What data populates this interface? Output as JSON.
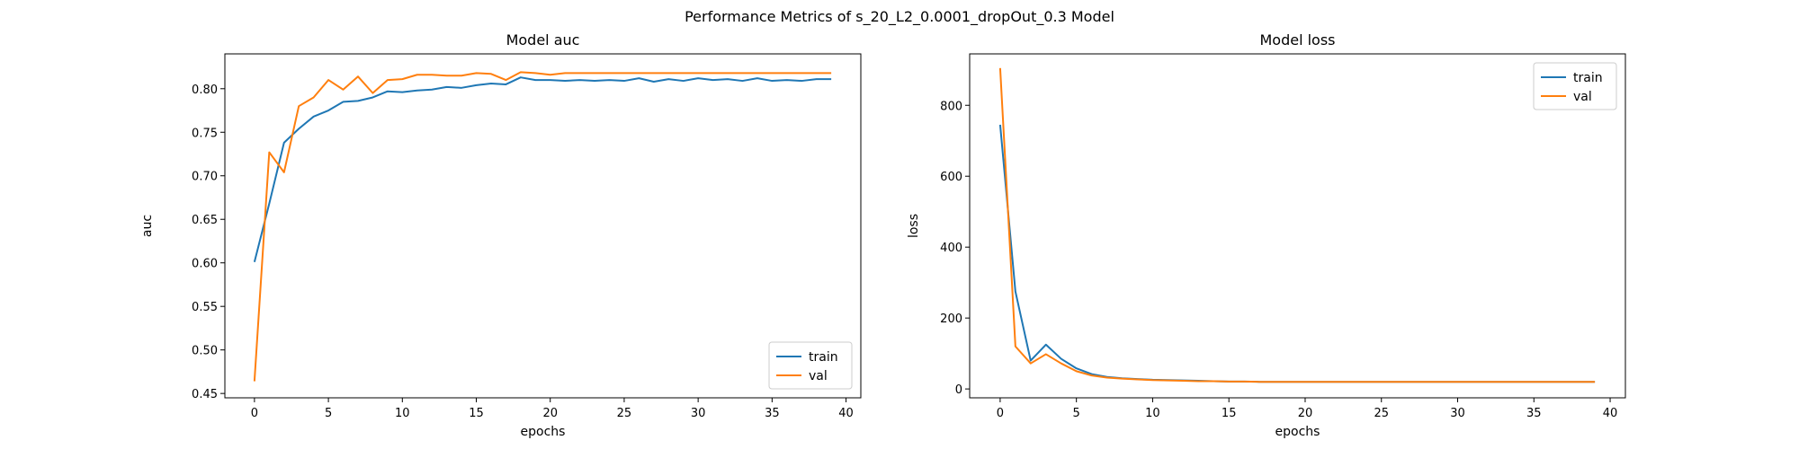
{
  "figure": {
    "suptitle": "Performance Metrics of s_20_L2_0.0001_dropOut_0.3 Model",
    "colors": {
      "train": "#1f77b4",
      "val": "#ff7f0e"
    }
  },
  "chart_data": [
    {
      "type": "line",
      "title": "Model auc",
      "xlabel": "epochs",
      "ylabel": "auc",
      "xlim": [
        -2,
        41
      ],
      "ylim": [
        0.445,
        0.84
      ],
      "xticks": [
        0,
        5,
        10,
        15,
        20,
        25,
        30,
        35,
        40
      ],
      "xtick_labels": [
        "0",
        "5",
        "10",
        "15",
        "20",
        "25",
        "30",
        "35",
        "40"
      ],
      "yticks": [
        0.45,
        0.5,
        0.55,
        0.6,
        0.65,
        0.7,
        0.75,
        0.8
      ],
      "ytick_labels": [
        "0.45",
        "0.50",
        "0.55",
        "0.60",
        "0.65",
        "0.70",
        "0.75",
        "0.80"
      ],
      "legend_position": "bottom-right",
      "grid": false,
      "x": [
        0,
        1,
        2,
        3,
        4,
        5,
        6,
        7,
        8,
        9,
        10,
        11,
        12,
        13,
        14,
        15,
        16,
        17,
        18,
        19,
        20,
        21,
        22,
        23,
        24,
        25,
        26,
        27,
        28,
        29,
        30,
        31,
        32,
        33,
        34,
        35,
        36,
        37,
        38,
        39
      ],
      "series": [
        {
          "name": "train",
          "values": [
            0.601,
            0.668,
            0.738,
            0.754,
            0.768,
            0.775,
            0.785,
            0.786,
            0.79,
            0.797,
            0.796,
            0.798,
            0.799,
            0.802,
            0.801,
            0.804,
            0.806,
            0.805,
            0.813,
            0.81,
            0.81,
            0.809,
            0.81,
            0.809,
            0.81,
            0.809,
            0.812,
            0.808,
            0.811,
            0.809,
            0.812,
            0.81,
            0.811,
            0.809,
            0.812,
            0.809,
            0.81,
            0.809,
            0.811,
            0.811
          ]
        },
        {
          "name": "val",
          "values": [
            0.464,
            0.727,
            0.704,
            0.78,
            0.79,
            0.81,
            0.799,
            0.814,
            0.795,
            0.81,
            0.811,
            0.816,
            0.816,
            0.815,
            0.815,
            0.818,
            0.817,
            0.81,
            0.819,
            0.818,
            0.816,
            0.818,
            0.818,
            0.818,
            0.818,
            0.818,
            0.818,
            0.818,
            0.818,
            0.818,
            0.818,
            0.818,
            0.818,
            0.818,
            0.818,
            0.818,
            0.818,
            0.818,
            0.818,
            0.818
          ]
        }
      ]
    },
    {
      "type": "line",
      "title": "Model loss",
      "xlabel": "epochs",
      "ylabel": "loss",
      "xlim": [
        -2,
        41
      ],
      "ylim": [
        -25,
        945
      ],
      "xticks": [
        0,
        5,
        10,
        15,
        20,
        25,
        30,
        35,
        40
      ],
      "xtick_labels": [
        "0",
        "5",
        "10",
        "15",
        "20",
        "25",
        "30",
        "35",
        "40"
      ],
      "yticks": [
        0,
        200,
        400,
        600,
        800
      ],
      "ytick_labels": [
        "0",
        "200",
        "400",
        "600",
        "800"
      ],
      "legend_position": "top-right",
      "grid": false,
      "x": [
        0,
        1,
        2,
        3,
        4,
        5,
        6,
        7,
        8,
        9,
        10,
        11,
        12,
        13,
        14,
        15,
        16,
        17,
        18,
        19,
        20,
        21,
        22,
        23,
        24,
        25,
        26,
        27,
        28,
        29,
        30,
        31,
        32,
        33,
        34,
        35,
        36,
        37,
        38,
        39
      ],
      "series": [
        {
          "name": "train",
          "values": [
            745,
            275,
            80,
            125,
            85,
            58,
            42,
            34,
            30,
            28,
            26,
            25,
            24,
            23,
            22,
            21,
            21,
            20,
            20,
            20,
            20,
            20,
            20,
            20,
            20,
            20,
            20,
            20,
            20,
            20,
            20,
            20,
            20,
            20,
            20,
            20,
            20,
            20,
            20,
            20
          ]
        },
        {
          "name": "val",
          "values": [
            905,
            120,
            72,
            98,
            72,
            50,
            38,
            32,
            29,
            27,
            25,
            24,
            23,
            22,
            22,
            21,
            21,
            20,
            20,
            20,
            20,
            20,
            20,
            20,
            20,
            20,
            20,
            20,
            20,
            20,
            20,
            20,
            20,
            20,
            20,
            20,
            20,
            20,
            20,
            20
          ]
        }
      ]
    }
  ]
}
